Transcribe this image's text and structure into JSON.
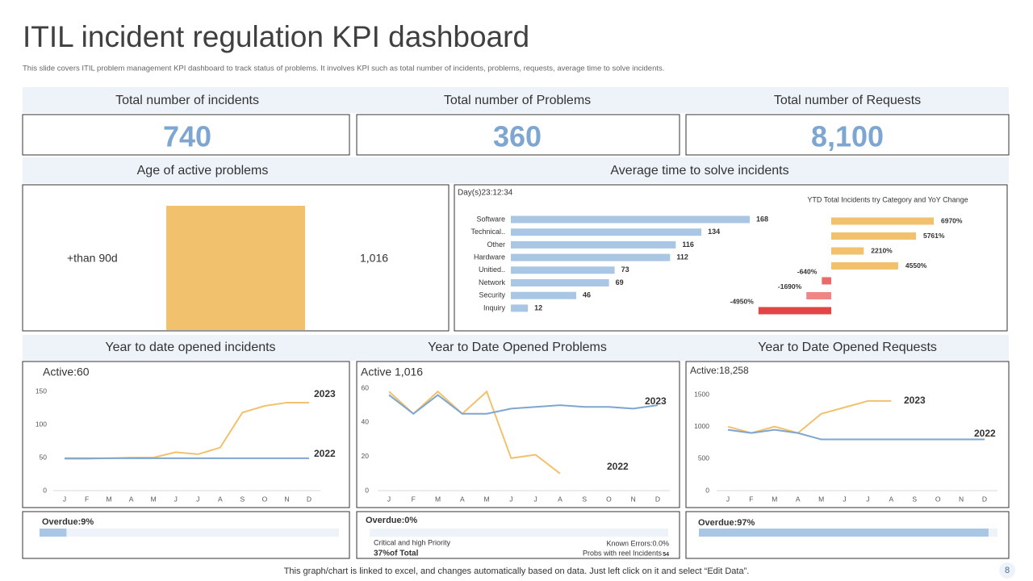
{
  "header": {
    "title": "ITIL incident regulation KPI dashboard",
    "subtitle": "This slide covers ITIL problem management KPI  dashboard to track status of problems. It involves KPI such as total number of incidents, problems, requests, average time to solve incidents."
  },
  "kpis": [
    {
      "label": "Total number of incidents",
      "value": 740
    },
    {
      "label": "Total number of Problems",
      "value": 360
    },
    {
      "label": "Total number of Requests",
      "value": 8100,
      "value_label": "8,100"
    }
  ],
  "chart_data": [
    {
      "type": "bar",
      "title": "Age of active problems",
      "categories": [
        "+than 90d"
      ],
      "values": [
        1016
      ],
      "value_labels": [
        "1,016"
      ],
      "color": "#f2c16d"
    },
    {
      "type": "barh",
      "title": "Average time to solve incidents",
      "subtitle": "Day(s)23:12:34",
      "categories": [
        "Software",
        "Technical..",
        "Other",
        "Hardware",
        "Unitied..",
        "Network",
        "Security",
        "Inquiry"
      ],
      "values": [
        168,
        134,
        116,
        112,
        73,
        69,
        46,
        12
      ],
      "color": "#a9c6e4"
    },
    {
      "type": "barh",
      "title": "YTD Total Incidents try Category and YoY Change",
      "values": [
        6970,
        5761,
        2210,
        4550,
        -640,
        -1690,
        -4950
      ],
      "value_labels": [
        "6970%",
        "5761%",
        "2210%",
        "4550%",
        "-640%",
        "-1690%",
        "-4950%"
      ],
      "colors": [
        "#f2c16d",
        "#f2c16d",
        "#f2c16d",
        "#f2c16d",
        "#e96a6a",
        "#f08585",
        "#e04646"
      ]
    },
    {
      "type": "line",
      "title": "Year to date opened incidents",
      "annotation": "Active:60",
      "categories": [
        "J",
        "F",
        "M",
        "A",
        "M",
        "J",
        "J",
        "A",
        "S",
        "O",
        "N",
        "D"
      ],
      "series": [
        {
          "name": "2023",
          "color": "#f2c16d",
          "values": [
            48,
            48,
            49,
            50,
            50,
            58,
            55,
            65,
            118,
            128,
            133,
            133
          ]
        },
        {
          "name": "2022",
          "color": "#7ea6d0",
          "values": [
            49,
            49,
            49,
            49,
            49,
            49,
            49,
            49,
            49,
            49,
            49,
            49
          ]
        }
      ],
      "ylim": [
        0,
        150
      ],
      "yticks": [
        0,
        50,
        100,
        150
      ],
      "overdue": {
        "label": "Overdue:9%",
        "value": 9
      }
    },
    {
      "type": "line",
      "title": "Year to Date Opened Problems",
      "annotation": "Active 1,016",
      "categories": [
        "J",
        "F",
        "M",
        "A",
        "M",
        "J",
        "J",
        "A",
        "S",
        "O",
        "N",
        "D"
      ],
      "series": [
        {
          "name": "2023",
          "color": "#f2c16d",
          "values": [
            58,
            45,
            58,
            45,
            58,
            19,
            21,
            10,
            null,
            null,
            null,
            null
          ]
        },
        {
          "name": "2022",
          "color": "#7ea6d0",
          "values": [
            56,
            45,
            56,
            45,
            45,
            48,
            49,
            50,
            49,
            49,
            48,
            50
          ]
        }
      ],
      "ylim": [
        0,
        60
      ],
      "yticks": [
        0,
        20,
        40,
        60
      ],
      "overdue": {
        "label": "Overdue:0%",
        "value": 0
      },
      "details": {
        "critical_label": "Critical and high Priority",
        "critical_value": "37%of Total",
        "known_errors": "Known Errors:0.0%",
        "reel_label": "Probs with reel Incidents",
        "reel_value": 54
      }
    },
    {
      "type": "line",
      "title": "Year to Date Opened Requests",
      "annotation": "Active:18,258",
      "categories": [
        "J",
        "F",
        "M",
        "A",
        "M",
        "J",
        "J",
        "A",
        "S",
        "O",
        "N",
        "D"
      ],
      "series": [
        {
          "name": "2023",
          "color": "#f2c16d",
          "values": [
            1000,
            900,
            1000,
            900,
            1200,
            1300,
            1400,
            1400,
            null,
            null,
            null,
            null
          ]
        },
        {
          "name": "2022",
          "color": "#7ea6d0",
          "values": [
            950,
            900,
            950,
            900,
            800,
            800,
            800,
            800,
            800,
            800,
            800,
            800
          ]
        }
      ],
      "ylim": [
        0,
        1500
      ],
      "yticks": [
        0,
        500,
        1000,
        1500
      ],
      "overdue": {
        "label": "Overdue:97%",
        "value": 97
      }
    }
  ],
  "footer": {
    "note": "This graph/chart is linked to excel, and changes automatically based on data. Just left click on it and select “Edit Data”.",
    "page": 8
  }
}
